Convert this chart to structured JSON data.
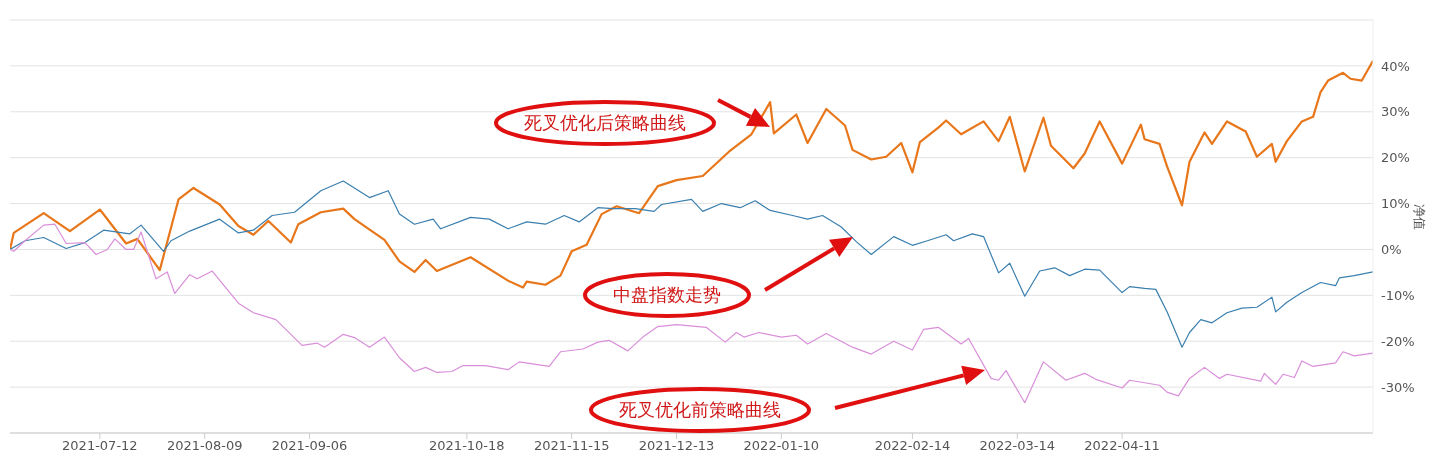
{
  "chart_data": {
    "type": "line",
    "ylabel": "净值",
    "xlim": [
      "2021-06-18",
      "2022-06-17"
    ],
    "xticks": [
      "2021-07-12",
      "2021-08-09",
      "2021-09-06",
      "2021-10-18",
      "2021-11-15",
      "2021-12-13",
      "2022-01-10",
      "2022-02-14",
      "2022-03-14",
      "2022-04-11"
    ],
    "ylim": [
      -40,
      50
    ],
    "yticks": [
      {
        "value": -40,
        "label": null
      },
      {
        "value": -30,
        "label": "-30%"
      },
      {
        "value": -20,
        "label": "-20%"
      },
      {
        "value": -10,
        "label": "-10%"
      },
      {
        "value": 0,
        "label": "0%"
      },
      {
        "value": 10,
        "label": "10%"
      },
      {
        "value": 20,
        "label": "20%"
      },
      {
        "value": 30,
        "label": "30%"
      },
      {
        "value": 40,
        "label": "40%"
      },
      {
        "value": 50,
        "label": null
      }
    ],
    "grid": "y",
    "marker": "none",
    "line_style": "solid",
    "series": [
      {
        "color": "#e8761a",
        "x": [
          "2021-06-18",
          "2021-06-19",
          "2021-06-27",
          "2021-07-04",
          "2021-07-12",
          "2021-07-19",
          "2021-07-22",
          "2021-07-28",
          "2021-08-02",
          "2021-08-06",
          "2021-08-13",
          "2021-08-18",
          "2021-08-22",
          "2021-08-26",
          "2021-09-01",
          "2021-09-03",
          "2021-09-09",
          "2021-09-15",
          "2021-09-18",
          "2021-09-26",
          "2021-09-30",
          "2021-10-04",
          "2021-10-07",
          "2021-10-10",
          "2021-10-19",
          "2021-10-29",
          "2021-11-02",
          "2021-11-03",
          "2021-11-08",
          "2021-11-12",
          "2021-11-15",
          "2021-11-19",
          "2021-11-23",
          "2021-11-27",
          "2021-12-03",
          "2021-12-08",
          "2021-12-13",
          "2021-12-20",
          "2021-12-27",
          "2022-01-02",
          "2022-01-07",
          "2022-01-08",
          "2022-01-14",
          "2022-01-17",
          "2022-01-22",
          "2022-01-27",
          "2022-01-29",
          "2022-02-03",
          "2022-02-07",
          "2022-02-11",
          "2022-02-14",
          "2022-02-16",
          "2022-02-21",
          "2022-02-23",
          "2022-02-27",
          "2022-03-05",
          "2022-03-09",
          "2022-03-12",
          "2022-03-16",
          "2022-03-21",
          "2022-03-23",
          "2022-03-29",
          "2022-04-01",
          "2022-04-05",
          "2022-04-11",
          "2022-04-16",
          "2022-04-17",
          "2022-04-21",
          "2022-04-23",
          "2022-04-26",
          "2022-04-27",
          "2022-04-29",
          "2022-05-03",
          "2022-05-05",
          "2022-05-09",
          "2022-05-14",
          "2022-05-17",
          "2022-05-21",
          "2022-05-22",
          "2022-05-25",
          "2022-05-29",
          "2022-06-01",
          "2022-06-03",
          "2022-06-05",
          "2022-06-09",
          "2022-06-11",
          "2022-06-14",
          "2022-06-17"
        ],
        "values": [
          0,
          3.6,
          7.9,
          4,
          8.7,
          1.3,
          2.3,
          -4.5,
          10.9,
          13.4,
          9.8,
          5.1,
          3.2,
          6.2,
          1.5,
          5.5,
          8.1,
          8.9,
          6.6,
          2.1,
          -2.6,
          -4.9,
          -2.3,
          -4.7,
          -1.7,
          -6.8,
          -8.3,
          -7,
          -7.7,
          -5.7,
          -0.4,
          1,
          7.7,
          9.4,
          7.9,
          13.8,
          15.1,
          16,
          21.3,
          25.1,
          32.1,
          25.3,
          29.4,
          23.2,
          30.6,
          27,
          21.7,
          19.6,
          20.2,
          23.2,
          16.8,
          23.4,
          26.6,
          28.1,
          25.1,
          27.9,
          23.6,
          28.9,
          17,
          28.7,
          22.6,
          17.7,
          20.9,
          27.9,
          18.7,
          27.2,
          24,
          23,
          18.1,
          11.7,
          9.6,
          19.1,
          25.5,
          23,
          27.9,
          25.7,
          20.2,
          23,
          19.1,
          23.6,
          27.9,
          28.9,
          34.3,
          36.8,
          38.5,
          37.2,
          36.8,
          41.1
        ]
      },
      {
        "color": "#3a7fae",
        "x": [
          "2021-06-18",
          "2021-06-22",
          "2021-06-27",
          "2021-07-03",
          "2021-07-08",
          "2021-07-13",
          "2021-07-20",
          "2021-07-23",
          "2021-07-29",
          "2021-07-31",
          "2021-08-05",
          "2021-08-13",
          "2021-08-18",
          "2021-08-22",
          "2021-08-27",
          "2021-09-02",
          "2021-09-09",
          "2021-09-15",
          "2021-09-22",
          "2021-09-27",
          "2021-09-30",
          "2021-10-04",
          "2021-10-09",
          "2021-10-11",
          "2021-10-19",
          "2021-10-24",
          "2021-10-29",
          "2021-11-03",
          "2021-11-08",
          "2021-11-13",
          "2021-11-17",
          "2021-11-22",
          "2021-11-26",
          "2021-12-02",
          "2021-12-07",
          "2021-12-09",
          "2021-12-17",
          "2021-12-20",
          "2021-12-25",
          "2021-12-30",
          "2022-01-03",
          "2022-01-07",
          "2022-01-13",
          "2022-01-17",
          "2022-01-21",
          "2022-01-26",
          "2022-01-30",
          "2022-02-03",
          "2022-02-09",
          "2022-02-14",
          "2022-02-18",
          "2022-02-23",
          "2022-02-25",
          "2022-03-02",
          "2022-03-05",
          "2022-03-09",
          "2022-03-12",
          "2022-03-16",
          "2022-03-20",
          "2022-03-24",
          "2022-03-28",
          "2022-04-01",
          "2022-04-05",
          "2022-04-11",
          "2022-04-13",
          "2022-04-17",
          "2022-04-20",
          "2022-04-23",
          "2022-04-27",
          "2022-04-29",
          "2022-05-02",
          "2022-05-05",
          "2022-05-09",
          "2022-05-13",
          "2022-05-17",
          "2022-05-21",
          "2022-05-22",
          "2022-05-25",
          "2022-05-29",
          "2022-06-03",
          "2022-06-07",
          "2022-06-08",
          "2022-06-12",
          "2022-06-17"
        ],
        "values": [
          0,
          1.9,
          2.6,
          0.2,
          1.5,
          4.2,
          3.4,
          5.3,
          -0.4,
          1.9,
          4,
          6.6,
          3.6,
          4.2,
          7.4,
          8.1,
          12.8,
          14.9,
          11.3,
          12.8,
          7.7,
          5.5,
          6.6,
          4.5,
          7,
          6.6,
          4.5,
          6,
          5.5,
          7.4,
          6,
          9.1,
          8.9,
          8.9,
          8.3,
          9.8,
          10.9,
          8.3,
          10,
          9.1,
          10.6,
          8.5,
          7.4,
          6.6,
          7.4,
          4.9,
          1.7,
          -1.1,
          2.8,
          0.9,
          1.9,
          3.2,
          1.9,
          3.4,
          2.8,
          -5.1,
          -3,
          -10.2,
          -4.7,
          -4,
          -5.7,
          -4.3,
          -4.5,
          -9.4,
          -8.1,
          -8.5,
          -8.7,
          -13.6,
          -21.3,
          -18.1,
          -15.3,
          -16,
          -13.8,
          -12.8,
          -12.6,
          -10.4,
          -13.6,
          -11.5,
          -9.4,
          -7.2,
          -7.9,
          -6.2,
          -5.7,
          -4.9
        ]
      },
      {
        "color": "#d98fd9",
        "x": [
          "2021-06-18",
          "2021-06-19",
          "2021-06-22",
          "2021-06-27",
          "2021-06-30",
          "2021-07-03",
          "2021-07-08",
          "2021-07-11",
          "2021-07-14",
          "2021-07-16",
          "2021-07-19",
          "2021-07-21",
          "2021-07-23",
          "2021-07-27",
          "2021-07-30",
          "2021-08-01",
          "2021-08-05",
          "2021-08-07",
          "2021-08-11",
          "2021-08-18",
          "2021-08-22",
          "2021-08-28",
          "2021-09-04",
          "2021-09-08",
          "2021-09-10",
          "2021-09-15",
          "2021-09-18",
          "2021-09-22",
          "2021-09-26",
          "2021-09-30",
          "2021-10-04",
          "2021-10-07",
          "2021-10-10",
          "2021-10-14",
          "2021-10-17",
          "2021-10-23",
          "2021-10-29",
          "2021-11-01",
          "2021-11-09",
          "2021-11-12",
          "2021-11-18",
          "2021-11-22",
          "2021-11-25",
          "2021-11-30",
          "2021-12-04",
          "2021-12-08",
          "2021-12-13",
          "2021-12-21",
          "2021-12-26",
          "2021-12-29",
          "2021-12-31",
          "2022-01-04",
          "2022-01-10",
          "2022-01-14",
          "2022-01-17",
          "2022-01-22",
          "2022-01-29",
          "2022-02-03",
          "2022-02-09",
          "2022-02-14",
          "2022-02-17",
          "2022-02-21",
          "2022-02-27",
          "2022-03-01",
          "2022-03-07",
          "2022-03-09",
          "2022-03-11",
          "2022-03-16",
          "2022-03-21",
          "2022-03-27",
          "2022-04-01",
          "2022-04-04",
          "2022-04-11",
          "2022-04-13",
          "2022-04-21",
          "2022-04-23",
          "2022-04-26",
          "2022-04-29",
          "2022-05-03",
          "2022-05-07",
          "2022-05-09",
          "2022-05-18",
          "2022-05-19",
          "2022-05-22",
          "2022-05-24",
          "2022-05-27",
          "2022-05-29",
          "2022-06-01",
          "2022-06-07",
          "2022-06-09",
          "2022-06-12",
          "2022-06-17"
        ],
        "values": [
          0,
          -0.4,
          1.9,
          5.3,
          5.5,
          1.3,
          1.5,
          -1.1,
          0,
          2.3,
          0,
          0,
          3.8,
          -6.4,
          -4.9,
          -9.6,
          -5.5,
          -6.4,
          -4.7,
          -11.7,
          -13.8,
          -15.3,
          -20.9,
          -20.4,
          -21.3,
          -18.5,
          -19.2,
          -21.3,
          -19.1,
          -23.6,
          -26.6,
          -25.7,
          -26.8,
          -26.6,
          -25.3,
          -25.3,
          -26.2,
          -24.5,
          -25.5,
          -22.3,
          -21.7,
          -20.2,
          -19.8,
          -22.1,
          -19.1,
          -16.8,
          -16.4,
          -17,
          -20.2,
          -18.1,
          -19.1,
          -18.1,
          -19.1,
          -18.7,
          -20.6,
          -18.3,
          -21.3,
          -22.8,
          -20,
          -21.9,
          -17.4,
          -17,
          -20.6,
          -19.4,
          -28.1,
          -28.5,
          -26.4,
          -33.4,
          -24.5,
          -28.5,
          -27,
          -28.3,
          -30.2,
          -28.5,
          -29.6,
          -31.1,
          -31.9,
          -28.1,
          -25.7,
          -28.1,
          -27.2,
          -28.7,
          -27,
          -29.4,
          -27.2,
          -27.9,
          -24.3,
          -25.5,
          -24.7,
          -22.3,
          -23.2,
          -22.6
        ]
      }
    ],
    "annotations": [
      "死叉优化后策略曲线",
      "中盘指数走势",
      "死叉优化前策略曲线"
    ]
  }
}
